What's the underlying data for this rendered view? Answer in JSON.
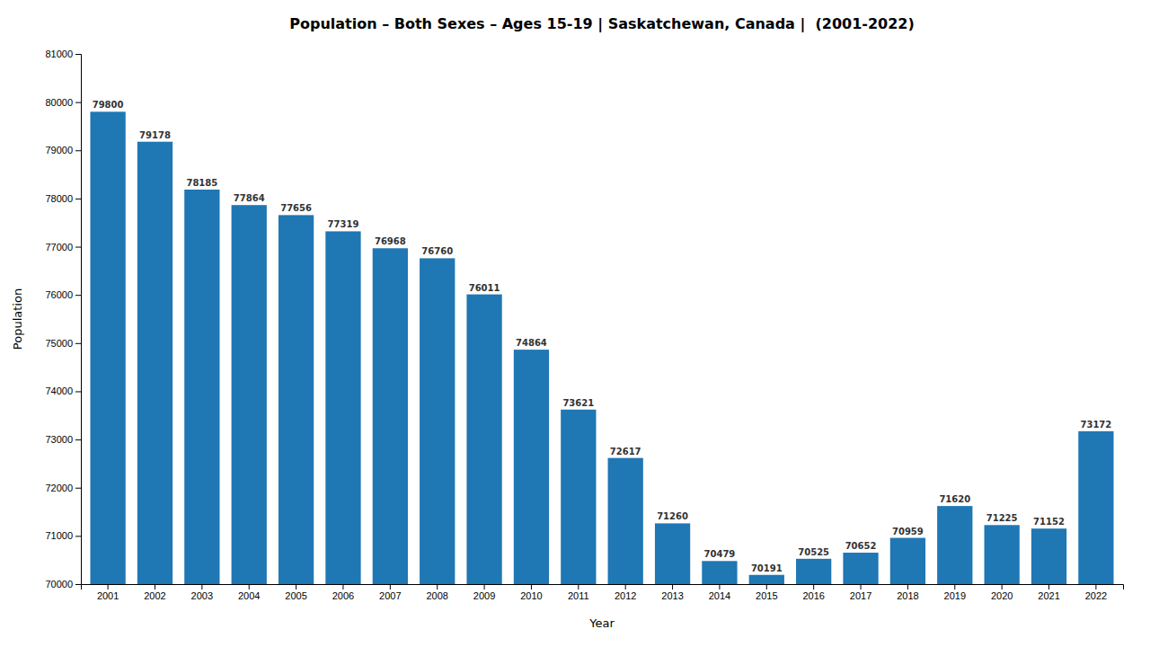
{
  "chart_data": {
    "type": "bar",
    "title": "Population – Both Sexes – Ages 15-19 | Saskatchewan, Canada |  (2001-2022)",
    "x_label": "Year",
    "y_label": "Population",
    "categories": [
      "2001",
      "2002",
      "2003",
      "2004",
      "2005",
      "2006",
      "2007",
      "2008",
      "2009",
      "2010",
      "2011",
      "2012",
      "2013",
      "2014",
      "2015",
      "2016",
      "2017",
      "2018",
      "2019",
      "2020",
      "2021",
      "2022"
    ],
    "values": [
      79800,
      79178,
      78185,
      77864,
      77656,
      77319,
      76968,
      76760,
      76011,
      74864,
      73621,
      72617,
      71260,
      70479,
      70191,
      70525,
      70652,
      70959,
      71620,
      71225,
      71152,
      73172
    ],
    "ylim": [
      70000,
      81000
    ],
    "yticks": [
      70000,
      71000,
      72000,
      73000,
      74000,
      75000,
      76000,
      77000,
      78000,
      79000,
      80000,
      81000
    ],
    "grid": false,
    "data_labels": true
  }
}
